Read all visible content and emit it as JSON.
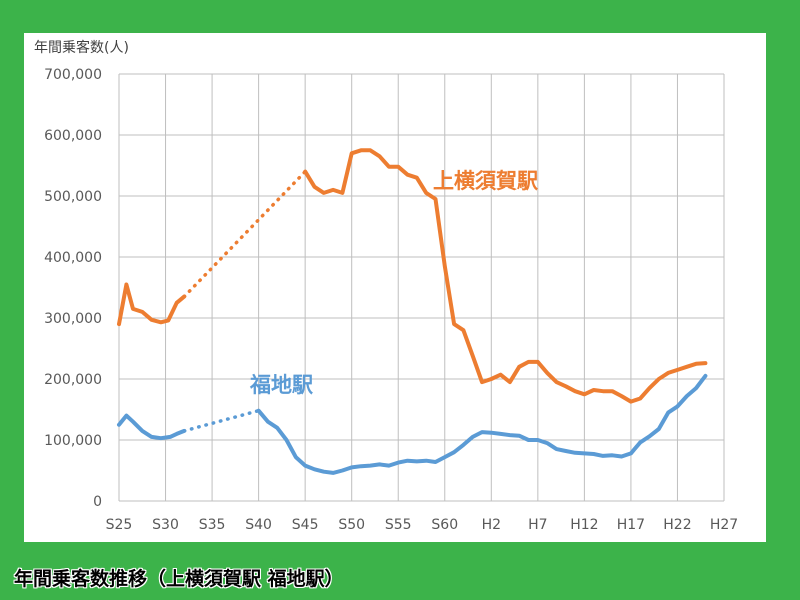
{
  "caption": "年間乗客数推移（上横須賀駅 福地駅）",
  "chart_data": {
    "type": "line",
    "ylabel": "年間乗客数(人)",
    "ylim": [
      0,
      700000
    ],
    "yticks": [
      "0",
      "100,000",
      "200,000",
      "300,000",
      "400,000",
      "500,000",
      "600,000",
      "700,000"
    ],
    "ytick_values": [
      0,
      100000,
      200000,
      300000,
      400000,
      500000,
      600000,
      700000
    ],
    "xlim": [
      25,
      88
    ],
    "xtick_labels": [
      "S25",
      "S30",
      "S35",
      "S40",
      "S45",
      "S50",
      "S55",
      "S60",
      "H2",
      "H7",
      "H12",
      "H17",
      "H22",
      "H27"
    ],
    "xtick_values": [
      25,
      30,
      35,
      40,
      45,
      50,
      55,
      60,
      65,
      70,
      75,
      80,
      85,
      90
    ],
    "grid": true,
    "series": [
      {
        "name": "上横須賀駅",
        "color": "#ed7d31",
        "segments": [
          {
            "style": "solid",
            "x": [
              25,
              25.8,
              26.5,
              27.5,
              28.5,
              29.5,
              30.3,
              31.2,
              32
            ],
            "y": [
              290000,
              355000,
              315000,
              310000,
              297000,
              293000,
              296000,
              325000,
              335000
            ]
          },
          {
            "style": "dotted",
            "x": [
              32,
              45
            ],
            "y": [
              335000,
              540000
            ]
          },
          {
            "style": "solid",
            "x": [
              45,
              46,
              47,
              48,
              49,
              50,
              51,
              52,
              53,
              54,
              55,
              56,
              57,
              58,
              59,
              60,
              61,
              62,
              63,
              64,
              65,
              66,
              67,
              68,
              69,
              70,
              71,
              72,
              73,
              74,
              75,
              76,
              77,
              78,
              79,
              80,
              81,
              82,
              83,
              84,
              85,
              86,
              87,
              88
            ],
            "y": [
              540000,
              515000,
              505000,
              510000,
              505000,
              570000,
              575000,
              575000,
              565000,
              548000,
              548000,
              535000,
              530000,
              505000,
              495000,
              385000,
              290000,
              280000,
              238000,
              195000,
              200000,
              207000,
              195000,
              220000,
              228000,
              228000,
              210000,
              195000,
              188000,
              180000,
              175000,
              182000,
              180000,
              180000,
              172000,
              163000,
              168000,
              185000,
              200000,
              210000,
              215000,
              220000,
              225000,
              226000
            ]
          }
        ]
      },
      {
        "name": "福地駅",
        "color": "#5b9bd5",
        "segments": [
          {
            "style": "solid",
            "x": [
              25,
              25.8,
              26.5,
              27.5,
              28.5,
              29.5,
              30.5,
              31.2,
              32
            ],
            "y": [
              125000,
              140000,
              130000,
              115000,
              105000,
              103000,
              105000,
              110000,
              115000
            ]
          },
          {
            "style": "dotted",
            "x": [
              32,
              40
            ],
            "y": [
              115000,
              148000
            ]
          },
          {
            "style": "solid",
            "x": [
              40,
              41,
              42,
              43,
              44,
              45,
              46,
              47,
              48,
              49,
              50,
              51,
              52,
              53,
              54,
              55,
              56,
              57,
              58,
              59,
              60,
              61,
              62,
              63,
              64,
              65,
              66,
              67,
              68,
              69,
              70,
              71,
              72,
              73,
              74,
              75,
              76,
              77,
              78,
              79,
              80,
              81,
              82,
              83,
              84,
              85,
              86,
              87,
              88
            ],
            "y": [
              148000,
              130000,
              120000,
              100000,
              72000,
              58000,
              52000,
              48000,
              46000,
              50000,
              55000,
              57000,
              58000,
              60000,
              58000,
              63000,
              66000,
              65000,
              66000,
              64000,
              72000,
              80000,
              92000,
              105000,
              113000,
              112000,
              110000,
              108000,
              107000,
              100000,
              100000,
              95000,
              85000,
              82000,
              79000,
              78000,
              77000,
              74000,
              75000,
              73000,
              78000,
              96000,
              106000,
              118000,
              145000,
              155000,
              172000,
              185000,
              205000
            ]
          }
        ]
      }
    ],
    "labels": [
      "上横須賀駅",
      "福地駅"
    ]
  }
}
